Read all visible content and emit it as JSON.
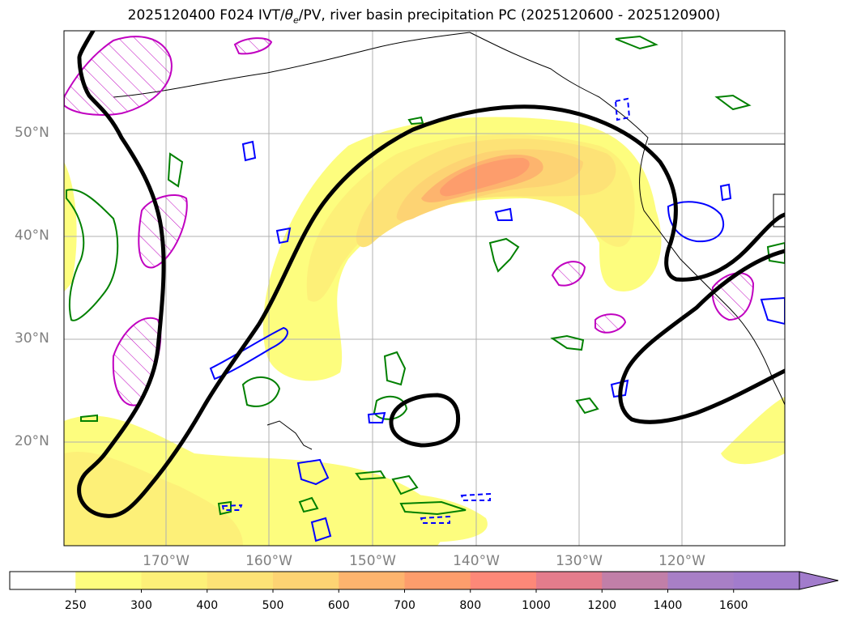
{
  "title": {
    "prefix": "2025120400 F024 IVT/",
    "theta_symbol": "θ",
    "theta_sub": "e",
    "suffix": "/PV, river basin precipitation PC (2025120600 - 2025120900)"
  },
  "axes": {
    "lat_labels": [
      "50°N",
      "40°N",
      "30°N",
      "20°N"
    ],
    "lon_labels": [
      "170°W",
      "160°W",
      "150°W",
      "140°W",
      "130°W",
      "120°W"
    ]
  },
  "colorbar": {
    "levels": [
      "250",
      "300",
      "400",
      "500",
      "600",
      "700",
      "800",
      "1000",
      "1200",
      "1400",
      "1600"
    ],
    "colors": [
      "#ffffff",
      "#fdfd7e",
      "#fdf078",
      "#fde276",
      "#fdd373",
      "#fdb46e",
      "#fd9d6c",
      "#fd8878",
      "#e47c8c",
      "#c17fa8",
      "#a87fc6",
      "#a27ccc"
    ]
  },
  "colors": {
    "ivt_contour": "#000000",
    "theta_e": "#008000",
    "pv_positive": "#c000c0",
    "pv_negative": "#0000ff",
    "grid": "#b0b0b0",
    "axis_labels": "#808080"
  }
}
